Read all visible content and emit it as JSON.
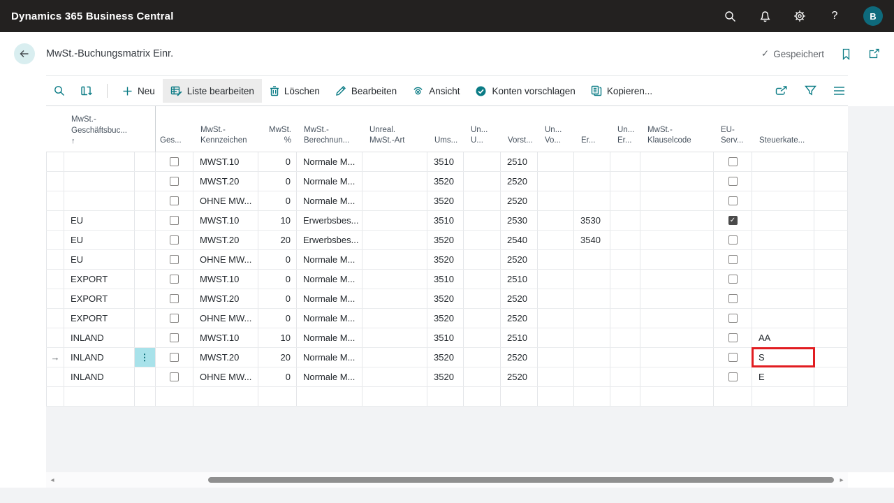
{
  "topbar": {
    "app_title": "Dynamics 365 Business Central",
    "avatar": "B"
  },
  "page": {
    "title": "MwSt.-Buchungsmatrix Einr.",
    "saved": "Gespeichert"
  },
  "toolbar": {
    "new": "Neu",
    "edit_list": "Liste bearbeiten",
    "delete": "Löschen",
    "edit": "Bearbeiten",
    "view": "Ansicht",
    "suggest_accounts": "Konten vorschlagen",
    "copy": "Kopieren..."
  },
  "icons": {
    "sort_asc": "↑",
    "selected_arrow": "→",
    "row_menu": "⋮",
    "check": "✓",
    "saved_check": "✓",
    "help": "?",
    "scroll_left": "◂",
    "scroll_right": "▸"
  },
  "colors": {
    "accent": "#0a7b85",
    "topbar": "#232120",
    "highlight_red": "#e11d21",
    "selected_menu_bg": "#a8e2ea",
    "backdrop": "#f2f3f5"
  },
  "table": {
    "columns": [
      {
        "id": "indicator",
        "lines": []
      },
      {
        "id": "gruppe",
        "lines": [
          "MwSt.-",
          "Geschäftsbuc..."
        ],
        "sort": true
      },
      {
        "id": "rowmenu",
        "lines": []
      },
      {
        "id": "ges",
        "lines": [
          "Ges..."
        ],
        "type": "checkbox"
      },
      {
        "id": "kennzeichen",
        "lines": [
          "MwSt.-",
          "Kennzeichen"
        ]
      },
      {
        "id": "prozent",
        "lines": [
          "MwSt.",
          "%"
        ],
        "align": "right"
      },
      {
        "id": "berechnung",
        "lines": [
          "MwSt.-",
          "Berechnun..."
        ]
      },
      {
        "id": "unreal",
        "lines": [
          "Unreal.",
          "MwSt.-Art"
        ]
      },
      {
        "id": "ums",
        "lines": [
          "Ums..."
        ]
      },
      {
        "id": "unU",
        "lines": [
          "Un...",
          "U..."
        ]
      },
      {
        "id": "vorst",
        "lines": [
          "Vorst..."
        ]
      },
      {
        "id": "unVo",
        "lines": [
          "Un...",
          "Vo..."
        ]
      },
      {
        "id": "er",
        "lines": [
          "Er..."
        ]
      },
      {
        "id": "unEr",
        "lines": [
          "Un...",
          "Er..."
        ]
      },
      {
        "id": "klausel",
        "lines": [
          "MwSt.-",
          "Klauselcode"
        ]
      },
      {
        "id": "euserv",
        "lines": [
          "EU-",
          "Serv..."
        ],
        "type": "checkbox"
      },
      {
        "id": "steuerkat",
        "lines": [
          "Steuerkate..."
        ]
      },
      {
        "id": "trailing",
        "lines": []
      }
    ],
    "rows": [
      {
        "gruppe": "",
        "ges": false,
        "kennzeichen": "MWST.10",
        "prozent": "0",
        "berechnung": "Normale M...",
        "unreal": "",
        "ums": "3510",
        "unU": "",
        "vorst": "2510",
        "unVo": "",
        "er": "",
        "unEr": "",
        "klausel": "",
        "euserv": false,
        "steuerkat": ""
      },
      {
        "gruppe": "",
        "ges": false,
        "kennzeichen": "MWST.20",
        "prozent": "0",
        "berechnung": "Normale M...",
        "unreal": "",
        "ums": "3520",
        "unU": "",
        "vorst": "2520",
        "unVo": "",
        "er": "",
        "unEr": "",
        "klausel": "",
        "euserv": false,
        "steuerkat": ""
      },
      {
        "gruppe": "",
        "ges": false,
        "kennzeichen": "OHNE MW...",
        "prozent": "0",
        "berechnung": "Normale M...",
        "unreal": "",
        "ums": "3520",
        "unU": "",
        "vorst": "2520",
        "unVo": "",
        "er": "",
        "unEr": "",
        "klausel": "",
        "euserv": false,
        "steuerkat": ""
      },
      {
        "gruppe": "EU",
        "ges": false,
        "kennzeichen": "MWST.10",
        "prozent": "10",
        "berechnung": "Erwerbsbes...",
        "unreal": "",
        "ums": "3510",
        "unU": "",
        "vorst": "2530",
        "unVo": "",
        "er": "3530",
        "unEr": "",
        "klausel": "",
        "euserv": true,
        "steuerkat": ""
      },
      {
        "gruppe": "EU",
        "ges": false,
        "kennzeichen": "MWST.20",
        "prozent": "20",
        "berechnung": "Erwerbsbes...",
        "unreal": "",
        "ums": "3520",
        "unU": "",
        "vorst": "2540",
        "unVo": "",
        "er": "3540",
        "unEr": "",
        "klausel": "",
        "euserv": false,
        "steuerkat": ""
      },
      {
        "gruppe": "EU",
        "ges": false,
        "kennzeichen": "OHNE MW...",
        "prozent": "0",
        "berechnung": "Normale M...",
        "unreal": "",
        "ums": "3520",
        "unU": "",
        "vorst": "2520",
        "unVo": "",
        "er": "",
        "unEr": "",
        "klausel": "",
        "euserv": false,
        "steuerkat": ""
      },
      {
        "gruppe": "EXPORT",
        "ges": false,
        "kennzeichen": "MWST.10",
        "prozent": "0",
        "berechnung": "Normale M...",
        "unreal": "",
        "ums": "3510",
        "unU": "",
        "vorst": "2510",
        "unVo": "",
        "er": "",
        "unEr": "",
        "klausel": "",
        "euserv": false,
        "steuerkat": ""
      },
      {
        "gruppe": "EXPORT",
        "ges": false,
        "kennzeichen": "MWST.20",
        "prozent": "0",
        "berechnung": "Normale M...",
        "unreal": "",
        "ums": "3520",
        "unU": "",
        "vorst": "2520",
        "unVo": "",
        "er": "",
        "unEr": "",
        "klausel": "",
        "euserv": false,
        "steuerkat": ""
      },
      {
        "gruppe": "EXPORT",
        "ges": false,
        "kennzeichen": "OHNE MW...",
        "prozent": "0",
        "berechnung": "Normale M...",
        "unreal": "",
        "ums": "3520",
        "unU": "",
        "vorst": "2520",
        "unVo": "",
        "er": "",
        "unEr": "",
        "klausel": "",
        "euserv": false,
        "steuerkat": ""
      },
      {
        "gruppe": "INLAND",
        "ges": false,
        "kennzeichen": "MWST.10",
        "prozent": "10",
        "berechnung": "Normale M...",
        "unreal": "",
        "ums": "3510",
        "unU": "",
        "vorst": "2510",
        "unVo": "",
        "er": "",
        "unEr": "",
        "klausel": "",
        "euserv": false,
        "steuerkat": "AA"
      },
      {
        "gruppe": "INLAND",
        "ges": false,
        "kennzeichen": "MWST.20",
        "prozent": "20",
        "berechnung": "Normale M...",
        "unreal": "",
        "ums": "3520",
        "unU": "",
        "vorst": "2520",
        "unVo": "",
        "er": "",
        "unEr": "",
        "klausel": "",
        "euserv": false,
        "steuerkat": "S",
        "selected": true,
        "highlight_steuerkat": true
      },
      {
        "gruppe": "INLAND",
        "ges": false,
        "kennzeichen": "OHNE MW...",
        "prozent": "0",
        "berechnung": "Normale M...",
        "unreal": "",
        "ums": "3520",
        "unU": "",
        "vorst": "2520",
        "unVo": "",
        "er": "",
        "unEr": "",
        "klausel": "",
        "euserv": false,
        "steuerkat": "E"
      },
      {
        "empty": true
      }
    ]
  }
}
